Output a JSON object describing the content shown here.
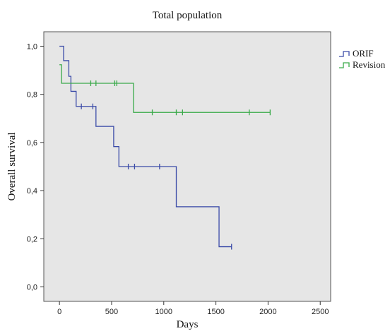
{
  "chart_data": {
    "type": "line",
    "title": "Total population",
    "xlabel": "Days",
    "ylabel": "Overall survival",
    "xlim": [
      -150,
      2600
    ],
    "ylim": [
      -0.06,
      1.06
    ],
    "x_ticks": [
      0,
      500,
      1000,
      1500,
      2000,
      2500
    ],
    "x_tick_labels": [
      "0",
      "500",
      "1000",
      "1500",
      "2000",
      "2500"
    ],
    "y_ticks": [
      0.0,
      0.2,
      0.4,
      0.6,
      0.8,
      1.0
    ],
    "y_tick_labels": [
      "0,0",
      "0,2",
      "0,4",
      "0,6",
      "0,8",
      "1,0"
    ],
    "grid": false,
    "legend_position": "right",
    "plot_background": "#e6e6e6",
    "series": [
      {
        "name": "ORIF",
        "color": "#3b4ba8",
        "steps": [
          [
            0,
            1.0
          ],
          [
            40,
            0.94
          ],
          [
            90,
            0.875
          ],
          [
            110,
            0.8125
          ],
          [
            160,
            0.75
          ],
          [
            350,
            0.667
          ],
          [
            520,
            0.583
          ],
          [
            570,
            0.5
          ],
          [
            1120,
            0.333
          ],
          [
            1530,
            0.167
          ],
          [
            1650,
            0.167
          ]
        ],
        "censored": [
          [
            210,
            0.75
          ],
          [
            320,
            0.75
          ],
          [
            660,
            0.5
          ],
          [
            720,
            0.5
          ],
          [
            960,
            0.5
          ],
          [
            1650,
            0.167
          ]
        ]
      },
      {
        "name": "Revision",
        "color": "#3aaa4a",
        "steps": [
          [
            0,
            0.923
          ],
          [
            20,
            0.846
          ],
          [
            710,
            0.725
          ],
          [
            2020,
            0.725
          ]
        ],
        "censored": [
          [
            300,
            0.846
          ],
          [
            350,
            0.846
          ],
          [
            530,
            0.846
          ],
          [
            550,
            0.846
          ],
          [
            890,
            0.725
          ],
          [
            1120,
            0.725
          ],
          [
            1180,
            0.725
          ],
          [
            1820,
            0.725
          ],
          [
            2020,
            0.725
          ]
        ]
      }
    ]
  }
}
